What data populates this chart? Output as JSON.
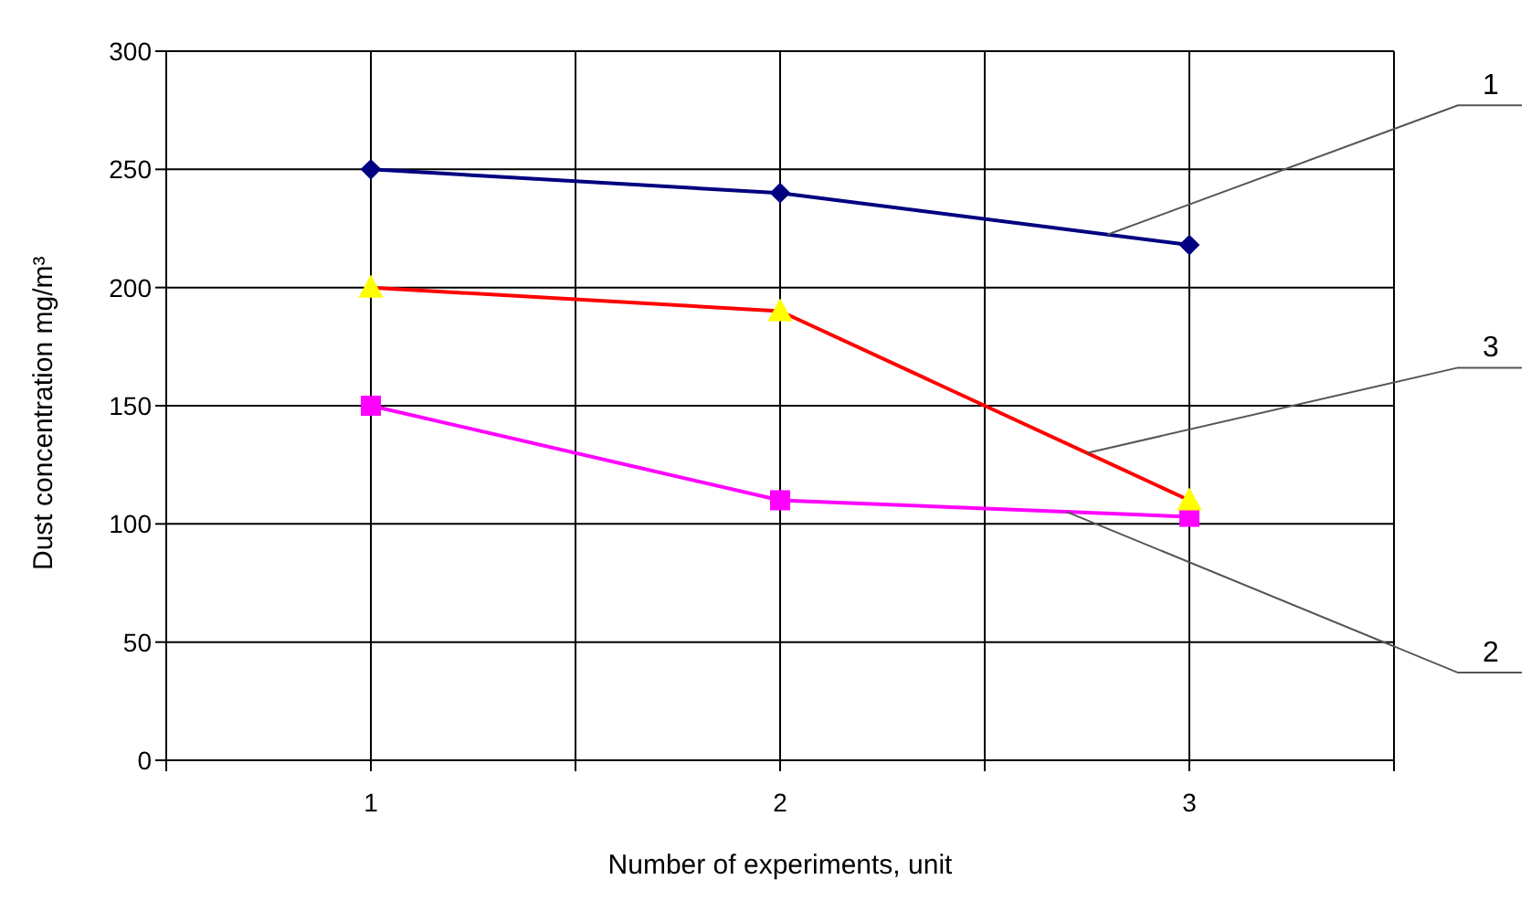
{
  "chart_data": {
    "type": "line",
    "xlabel": "Number of experiments, unit",
    "ylabel": "Dust concentration mg/m³",
    "x": [
      1,
      2,
      3
    ],
    "series": [
      {
        "name": "1",
        "color": "#000080",
        "marker": "diamond",
        "values": [
          250,
          240,
          218
        ]
      },
      {
        "name": "2",
        "color": "#ff00ff",
        "marker": "square",
        "values": [
          150,
          110,
          103
        ]
      },
      {
        "name": "3",
        "color": "#ff0000",
        "colors": [
          "#ffff00",
          "#ffff00",
          "#ffff00"
        ],
        "marker": "triangle",
        "values": [
          200,
          190,
          110
        ]
      }
    ],
    "xlim": [
      0.5,
      3.5
    ],
    "xticks": [
      {
        "value": 0.5,
        "label": null
      },
      1,
      {
        "value": 1.5,
        "label": null
      },
      2,
      {
        "value": 2.5,
        "label": null
      },
      3,
      {
        "value": 3.5,
        "label": null
      }
    ],
    "ylim": [
      0,
      300
    ],
    "yticks": [
      0,
      50,
      100,
      150,
      200,
      250,
      300
    ],
    "grid": true,
    "line_style": "solid"
  }
}
